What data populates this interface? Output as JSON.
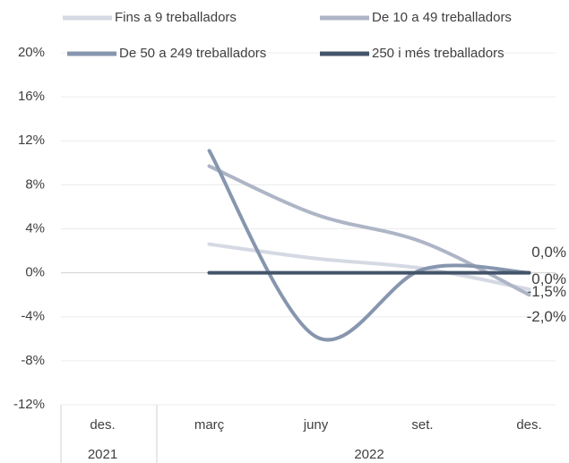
{
  "chart_data": {
    "type": "line",
    "categories": [
      "des.",
      "març",
      "juny",
      "set.",
      "des."
    ],
    "groups": [
      {
        "label": "2021",
        "count": 1
      },
      {
        "label": "2022",
        "count": 4
      }
    ],
    "series": [
      {
        "name": "Fins a 9 treballadors",
        "color": "#d5d9e3",
        "values": [
          null,
          2.6,
          1.3,
          0.4,
          -1.5
        ],
        "value_labels": [
          null,
          null,
          null,
          null,
          "-1,5%"
        ]
      },
      {
        "name": "De 10 a 49 treballadors",
        "color": "#adb5c6",
        "values": [
          null,
          9.7,
          5.3,
          2.8,
          -2.0
        ],
        "value_labels": [
          null,
          null,
          null,
          null,
          "-2,0%"
        ]
      },
      {
        "name": "De 50 a 249 treballadors",
        "color": "#8796ae",
        "values": [
          null,
          11.1,
          -5.8,
          0.3,
          0.0
        ],
        "value_labels": [
          null,
          null,
          null,
          null,
          "0,0%"
        ]
      },
      {
        "name": "250 i més treballadors",
        "color": "#44546a",
        "values": [
          null,
          0.0,
          0.0,
          0.0,
          0.0
        ],
        "value_labels": [
          null,
          null,
          null,
          null,
          "0,0%"
        ]
      }
    ],
    "ylim": [
      -12,
      20
    ],
    "yticks": [
      {
        "value": -12,
        "label": "-12%"
      },
      {
        "value": -8,
        "label": "-8%"
      },
      {
        "value": -4,
        "label": "-4%"
      },
      {
        "value": 0,
        "label": "0%"
      },
      {
        "value": 4,
        "label": "4%"
      },
      {
        "value": 8,
        "label": "8%"
      },
      {
        "value": 12,
        "label": "12%"
      },
      {
        "value": 16,
        "label": "16%"
      },
      {
        "value": 20,
        "label": "20%"
      }
    ],
    "grid": true
  }
}
